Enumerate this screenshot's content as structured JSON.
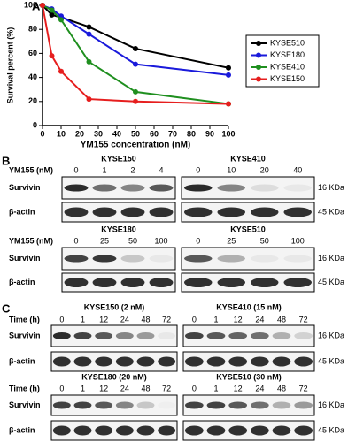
{
  "chart_data": {
    "type": "line",
    "panel_label": "A",
    "ylabel": "Survival percent (%)",
    "xlabel": "YM155 concentration (nM)",
    "x": [
      0,
      5,
      10,
      25,
      50,
      100
    ],
    "xlim": [
      0,
      100
    ],
    "xticks": [
      0,
      10,
      20,
      30,
      40,
      50,
      60,
      70,
      80,
      90,
      100
    ],
    "ylim": [
      0,
      100
    ],
    "yticks": [
      0,
      20,
      40,
      60,
      80,
      100
    ],
    "series": [
      {
        "name": "KYSE510",
        "color": "#000000",
        "values": [
          100,
          92,
          90,
          82,
          64,
          48
        ]
      },
      {
        "name": "KYSE180",
        "color": "#1a1adb",
        "values": [
          100,
          97,
          91,
          76,
          51,
          42
        ]
      },
      {
        "name": "KYSE410",
        "color": "#1f8f1f",
        "values": [
          100,
          96,
          88,
          53,
          28,
          18
        ]
      },
      {
        "name": "KYSE150",
        "color": "#e61e1e",
        "values": [
          100,
          58,
          45,
          22,
          20,
          18
        ]
      }
    ]
  },
  "panel_b": {
    "panel_label": "B",
    "condition_label": "YM155 (nM)",
    "proteins": [
      "Survivin",
      "β-actin"
    ],
    "sizes": [
      "16 KDa",
      "45 KDa"
    ],
    "groups": [
      {
        "title": "KYSE150",
        "lanes": [
          0,
          1,
          2,
          4
        ]
      },
      {
        "title": "KYSE410",
        "lanes": [
          0,
          10,
          20,
          40
        ]
      },
      {
        "title": "KYSE180",
        "lanes": [
          0,
          25,
          50,
          100
        ]
      },
      {
        "title": "KYSE510",
        "lanes": [
          0,
          25,
          50,
          100
        ]
      }
    ]
  },
  "panel_c": {
    "panel_label": "C",
    "condition_label": "Time (h)",
    "proteins": [
      "Survivin",
      "β-actin"
    ],
    "sizes": [
      "16 KDa",
      "45 KDa"
    ],
    "groups": [
      {
        "title": "KYSE150 (2 nM)",
        "lanes": [
          0,
          1,
          12,
          24,
          48,
          72
        ]
      },
      {
        "title": "KYSE410 (15 nM)",
        "lanes": [
          0,
          1,
          12,
          24,
          48,
          72
        ]
      },
      {
        "title": "KYSE180 (20 nM)",
        "lanes": [
          0,
          1,
          12,
          24,
          48,
          72
        ]
      },
      {
        "title": "KYSE510 (30 nM)",
        "lanes": [
          0,
          1,
          12,
          24,
          48,
          72
        ]
      }
    ]
  }
}
